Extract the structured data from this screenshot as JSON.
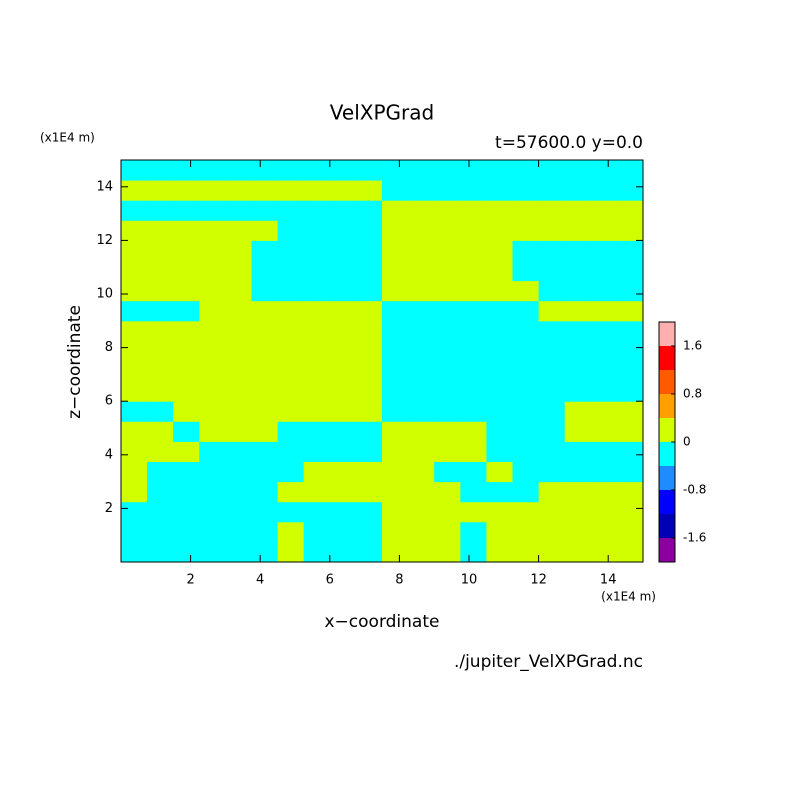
{
  "chart_data": {
    "type": "contour",
    "title": "VelXPGrad",
    "subtitle": "t=57600.0 y=0.0",
    "xlabel": "x−coordinate",
    "ylabel": "z−coordinate",
    "x_unit": "(x1E4 m)",
    "y_unit": "(x1E4 m)",
    "footer": "./jupiter_VelXPGrad.nc",
    "xlim": [
      0,
      15
    ],
    "ylim": [
      0,
      15
    ],
    "xticks": [
      2,
      4,
      6,
      8,
      10,
      12,
      14
    ],
    "yticks": [
      2,
      4,
      6,
      8,
      10,
      12,
      14
    ],
    "x": [
      0.375,
      1.125,
      1.875,
      2.625,
      3.375,
      4.125,
      4.875,
      5.625,
      6.375,
      7.125,
      7.875,
      8.625,
      9.375,
      10.125,
      10.875,
      11.625,
      12.375,
      13.125,
      13.875,
      14.625
    ],
    "y": [
      0.375,
      1.125,
      1.875,
      2.625,
      3.375,
      4.125,
      4.875,
      5.625,
      6.375,
      7.125,
      7.875,
      8.625,
      9.375,
      10.125,
      10.875,
      11.625,
      12.375,
      13.125,
      13.875,
      14.625
    ],
    "values": [
      [
        -0.2,
        -0.2,
        -0.2,
        -0.2,
        -0.2,
        -0.2,
        0.2,
        -0.2,
        -0.2,
        -0.2,
        0.2,
        0.2,
        0.2,
        -0.2,
        0.2,
        0.2,
        0.2,
        0.2,
        0.2,
        0.2
      ],
      [
        -0.2,
        -0.2,
        -0.2,
        -0.2,
        -0.2,
        -0.2,
        0.2,
        -0.2,
        -0.2,
        -0.2,
        0.2,
        0.2,
        0.2,
        -0.2,
        0.2,
        0.2,
        0.2,
        0.2,
        0.2,
        0.2
      ],
      [
        -0.2,
        -0.2,
        -0.2,
        -0.2,
        -0.2,
        -0.2,
        -0.2,
        -0.2,
        -0.2,
        -0.2,
        0.2,
        0.2,
        0.2,
        0.2,
        0.2,
        0.2,
        0.2,
        0.2,
        0.2,
        0.2
      ],
      [
        0.2,
        -0.2,
        -0.2,
        -0.2,
        -0.2,
        -0.2,
        0.2,
        0.2,
        0.2,
        0.2,
        0.2,
        0.2,
        0.2,
        -0.2,
        -0.2,
        -0.2,
        0.2,
        0.2,
        0.2,
        0.2
      ],
      [
        0.2,
        -0.2,
        -0.2,
        -0.2,
        -0.2,
        -0.2,
        -0.2,
        0.2,
        0.2,
        0.2,
        0.2,
        0.2,
        -0.2,
        -0.2,
        0.2,
        -0.2,
        -0.2,
        -0.2,
        -0.2,
        -0.2
      ],
      [
        0.2,
        0.2,
        0.2,
        -0.2,
        -0.2,
        -0.2,
        -0.2,
        -0.2,
        -0.2,
        -0.2,
        0.2,
        0.2,
        0.2,
        0.2,
        -0.2,
        -0.2,
        -0.2,
        -0.2,
        -0.2,
        -0.2
      ],
      [
        0.2,
        0.2,
        -0.2,
        0.2,
        0.2,
        0.2,
        -0.2,
        -0.2,
        -0.2,
        -0.2,
        0.2,
        0.2,
        0.2,
        0.2,
        -0.2,
        -0.2,
        -0.2,
        0.2,
        0.2,
        0.2
      ],
      [
        -0.2,
        -0.2,
        0.2,
        0.2,
        0.2,
        0.2,
        0.2,
        0.2,
        0.2,
        0.2,
        -0.2,
        -0.2,
        -0.2,
        -0.2,
        -0.2,
        -0.2,
        -0.2,
        0.2,
        0.2,
        0.2
      ],
      [
        0.2,
        0.2,
        0.2,
        0.2,
        0.2,
        0.2,
        0.2,
        0.2,
        0.2,
        0.2,
        -0.2,
        -0.2,
        -0.2,
        -0.2,
        -0.2,
        -0.2,
        -0.2,
        -0.2,
        -0.2,
        -0.2
      ],
      [
        0.2,
        0.2,
        0.2,
        0.2,
        0.2,
        0.2,
        0.2,
        0.2,
        0.2,
        0.2,
        -0.2,
        -0.2,
        -0.2,
        -0.2,
        -0.2,
        -0.2,
        -0.2,
        -0.2,
        -0.2,
        -0.2
      ],
      [
        0.2,
        0.2,
        0.2,
        0.2,
        0.2,
        0.2,
        0.2,
        0.2,
        0.2,
        0.2,
        -0.2,
        -0.2,
        -0.2,
        -0.2,
        -0.2,
        -0.2,
        -0.2,
        -0.2,
        -0.2,
        -0.2
      ],
      [
        0.2,
        0.2,
        0.2,
        0.2,
        0.2,
        0.2,
        0.2,
        0.2,
        0.2,
        0.2,
        -0.2,
        -0.2,
        -0.2,
        -0.2,
        -0.2,
        -0.2,
        -0.2,
        -0.2,
        -0.2,
        -0.2
      ],
      [
        -0.2,
        -0.2,
        -0.2,
        0.2,
        0.2,
        0.2,
        0.2,
        0.2,
        0.2,
        0.2,
        -0.2,
        -0.2,
        -0.2,
        -0.2,
        -0.2,
        -0.2,
        0.2,
        0.2,
        0.2,
        0.2
      ],
      [
        0.2,
        0.2,
        0.2,
        0.2,
        0.2,
        -0.2,
        -0.2,
        -0.2,
        -0.2,
        -0.2,
        0.2,
        0.2,
        0.2,
        0.2,
        0.2,
        0.2,
        -0.2,
        -0.2,
        -0.2,
        -0.2
      ],
      [
        0.2,
        0.2,
        0.2,
        0.2,
        0.2,
        -0.2,
        -0.2,
        -0.2,
        -0.2,
        -0.2,
        0.2,
        0.2,
        0.2,
        0.2,
        0.2,
        -0.2,
        -0.2,
        -0.2,
        -0.2,
        -0.2
      ],
      [
        0.2,
        0.2,
        0.2,
        0.2,
        0.2,
        -0.2,
        -0.2,
        -0.2,
        -0.2,
        -0.2,
        0.2,
        0.2,
        0.2,
        0.2,
        0.2,
        -0.2,
        -0.2,
        -0.2,
        -0.2,
        -0.2
      ],
      [
        0.2,
        0.2,
        0.2,
        0.2,
        0.2,
        0.2,
        -0.2,
        -0.2,
        -0.2,
        -0.2,
        0.2,
        0.2,
        0.2,
        0.2,
        0.2,
        0.2,
        0.2,
        0.2,
        0.2,
        0.2
      ],
      [
        -0.2,
        -0.2,
        -0.2,
        -0.2,
        -0.2,
        -0.2,
        -0.2,
        -0.2,
        -0.2,
        -0.2,
        0.2,
        0.2,
        0.2,
        0.2,
        0.2,
        0.2,
        0.2,
        0.2,
        0.2,
        0.2
      ],
      [
        0.2,
        0.2,
        0.2,
        0.2,
        0.2,
        0.2,
        0.2,
        0.2,
        0.2,
        0.2,
        -0.2,
        -0.2,
        -0.2,
        -0.2,
        -0.2,
        -0.2,
        -0.2,
        -0.2,
        -0.2,
        -0.2
      ],
      [
        -0.2,
        -0.2,
        -0.2,
        -0.2,
        -0.2,
        -0.2,
        -0.2,
        -0.2,
        -0.2,
        -0.2,
        -0.2,
        -0.2,
        -0.2,
        -0.2,
        -0.2,
        -0.2,
        -0.2,
        -0.2,
        -0.2,
        -0.2
      ]
    ],
    "levels": [
      -2,
      -1.6,
      -1.2,
      -0.8,
      -0.4,
      0,
      0.4,
      0.8,
      1.2,
      1.6,
      2
    ],
    "colors": [
      "#8c00a0",
      "#0000b4",
      "#0000ff",
      "#1e8cff",
      "#00ffff",
      "#d2ff00",
      "#ffa000",
      "#ff5a00",
      "#ff0000",
      "#ffafaf"
    ],
    "colorbar_ticks": [
      -1.6,
      -0.8,
      0,
      0.8,
      1.6
    ]
  }
}
